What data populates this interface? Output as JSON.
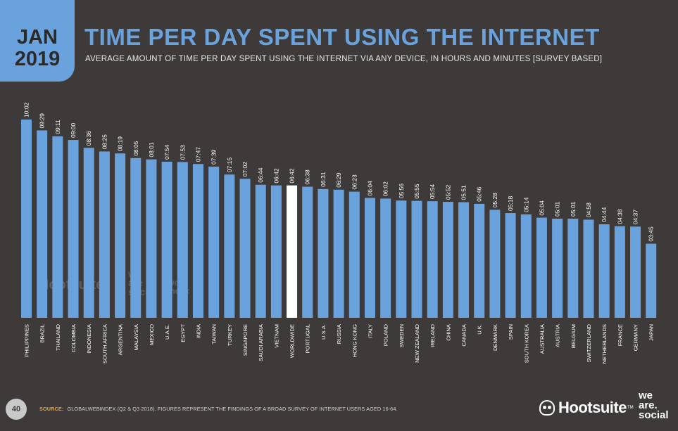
{
  "header": {
    "month": "JAN",
    "year": "2019",
    "title": "TIME PER DAY SPENT USING THE INTERNET",
    "subtitle": "AVERAGE AMOUNT OF TIME PER DAY SPENT USING THE INTERNET VIA ANY DEVICE, IN HOURS AND MINUTES [SURVEY BASED]"
  },
  "footer": {
    "page_number": "40",
    "source_label": "SOURCE:",
    "source_text": "GLOBALWEBINDEX (Q2 & Q3 2018). FIGURES REPRESENT THE FINDINGS OF A BROAD SURVEY OF INTERNET USERS AGED 16-64.",
    "brand_hootsuite": "Hootsuite",
    "brand_tm": "TM",
    "brand_we": "we",
    "brand_are": "are.",
    "brand_social": "social"
  },
  "watermarks": {
    "hootsuite": "Hootsuite",
    "we": "we",
    "are": "are",
    "social": "social",
    "gwi_web": "web",
    "gwi_index": "index"
  },
  "colors": {
    "bar": "#6aa2dd",
    "highlight_bar": "#ffffff",
    "background": "#3d3a39",
    "accent": "#6aa2dd",
    "source_label": "#f0a030"
  },
  "chart_data": {
    "type": "bar",
    "title": "TIME PER DAY SPENT USING THE INTERNET",
    "highlight": "WORLDWIDE",
    "categories": [
      "PHILIPPINES",
      "BRAZIL",
      "THAILAND",
      "COLOMBIA",
      "INDONESIA",
      "SOUTH AFRICA",
      "ARGENTINA",
      "MALAYSIA",
      "MEXICO",
      "U.A.E.",
      "EGYPT",
      "INDIA",
      "TAIWAN",
      "TURKEY",
      "SINGAPORE",
      "SAUDI ARABIA",
      "VIETNAM",
      "WORLDWIDE",
      "PORTUGAL",
      "U.S.A.",
      "RUSSIA",
      "HONG KONG",
      "ITALY",
      "POLAND",
      "SWEDEN",
      "NEW ZEALAND",
      "IRELAND",
      "CHINA",
      "CANADA",
      "U.K.",
      "DENMARK",
      "SPAIN",
      "SOUTH KOREA",
      "AUSTRALIA",
      "AUSTRIA",
      "BELGIUM",
      "SWITZERLAND",
      "NETHERLANDS",
      "FRANCE",
      "GERMANY",
      "JAPAN"
    ],
    "labels": [
      "10:02",
      "09:29",
      "09:11",
      "09:00",
      "08:36",
      "08:25",
      "08:19",
      "08:05",
      "08:01",
      "07:54",
      "07:53",
      "07:47",
      "07:39",
      "07:15",
      "07:02",
      "06:44",
      "06:42",
      "06:42",
      "06:38",
      "06:31",
      "06:29",
      "06:23",
      "06:04",
      "06:02",
      "05:56",
      "05:55",
      "05:54",
      "05:52",
      "05:51",
      "05:46",
      "05:28",
      "05:18",
      "05:14",
      "05:04",
      "05:01",
      "05:01",
      "04:58",
      "04:44",
      "04:38",
      "04:37",
      "03:45"
    ],
    "values": [
      10.033,
      9.483,
      9.183,
      9.0,
      8.6,
      8.417,
      8.317,
      8.083,
      8.017,
      7.9,
      7.883,
      7.783,
      7.65,
      7.25,
      7.033,
      6.733,
      6.7,
      6.7,
      6.633,
      6.517,
      6.483,
      6.383,
      6.067,
      6.033,
      5.933,
      5.917,
      5.9,
      5.867,
      5.85,
      5.767,
      5.467,
      5.3,
      5.233,
      5.067,
      5.017,
      5.017,
      4.967,
      4.733,
      4.633,
      4.617,
      3.75
    ],
    "unit": "hours"
  }
}
